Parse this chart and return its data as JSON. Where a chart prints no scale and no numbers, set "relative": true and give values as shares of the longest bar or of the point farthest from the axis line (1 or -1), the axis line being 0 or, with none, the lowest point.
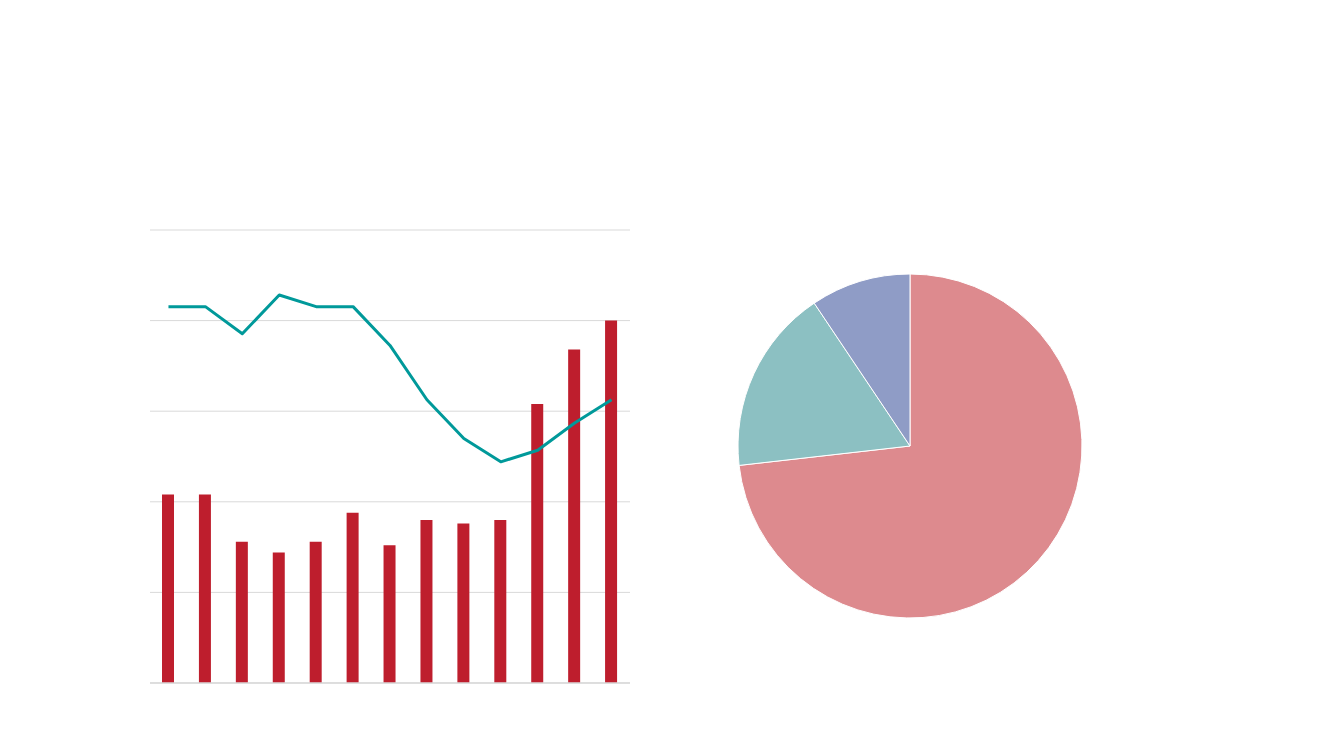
{
  "chart_data": [
    {
      "type": "bar",
      "relative": true,
      "grid": "y",
      "categories": [
        null,
        null,
        null,
        null,
        null,
        null,
        null,
        null,
        null,
        null,
        null,
        null,
        null
      ],
      "color": "#be1e2d",
      "values": [
        0.52,
        0.52,
        0.39,
        0.36,
        0.39,
        0.47,
        0.38,
        0.45,
        0.44,
        0.45,
        0.77,
        0.92,
        1
      ]
    },
    {
      "type": "line",
      "relative": true,
      "categories": [
        null,
        null,
        null,
        null,
        null,
        null,
        null,
        null,
        null,
        null,
        null,
        null,
        null
      ],
      "color": "#00999a",
      "values": [
        0.97,
        0.97,
        0.9,
        1,
        0.97,
        0.97,
        0.87,
        0.73,
        0.63,
        0.57,
        0.6,
        0.67,
        0.73
      ]
    },
    {
      "type": "pie",
      "categories": [
        null,
        null,
        null
      ],
      "values": [
        73.2,
        17.4,
        9.4
      ],
      "colors": [
        "#dd8a8e",
        "#8cc0c2",
        "#8f9cc6"
      ]
    }
  ]
}
